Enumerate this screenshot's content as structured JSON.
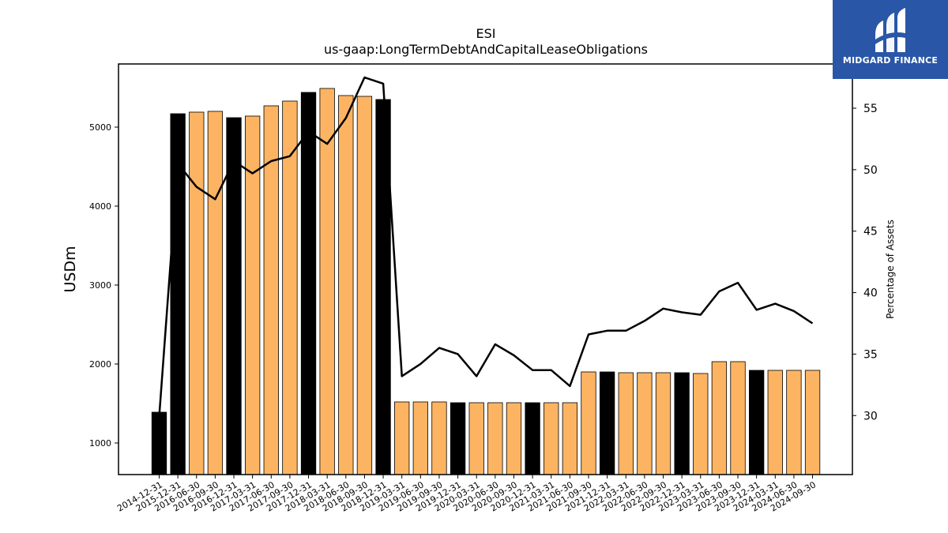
{
  "chart_data": {
    "type": "bar",
    "title": "ESI",
    "subtitle": "us-gaap:LongTermDebtAndCapitalLeaseObligations",
    "ylabel": "USDm",
    "y2label": "Percentage of Assets",
    "ylim": [
      600,
      5800
    ],
    "y2lim": [
      25.2,
      58.6
    ],
    "yticks": [
      1000,
      2000,
      3000,
      4000,
      5000
    ],
    "y2ticks": [
      30,
      35,
      40,
      45,
      50,
      55
    ],
    "categories": [
      "2014-12-31",
      "2015-12-31",
      "2016-06-30",
      "2016-09-30",
      "2016-12-31",
      "2017-03-31",
      "2017-06-30",
      "2017-09-30",
      "2017-12-31",
      "2018-03-31",
      "2018-06-30",
      "2018-09-30",
      "2018-12-31",
      "2019-03-31",
      "2019-06-30",
      "2019-09-30",
      "2019-12-31",
      "2020-03-31",
      "2020-06-30",
      "2020-09-30",
      "2020-12-31",
      "2021-03-31",
      "2021-06-30",
      "2021-09-30",
      "2021-12-31",
      "2022-03-31",
      "2022-06-30",
      "2022-09-30",
      "2022-12-31",
      "2023-03-31",
      "2023-06-30",
      "2023-09-30",
      "2023-12-31",
      "2024-03-31",
      "2024-06-30",
      "2024-09-30"
    ],
    "series": [
      {
        "kind": "bar",
        "values": [
          1390,
          5170,
          5190,
          5200,
          5120,
          5140,
          5270,
          5330,
          5440,
          5490,
          5400,
          5390,
          5350,
          1520,
          1520,
          1520,
          1510,
          1510,
          1510,
          1510,
          1510,
          1510,
          1510,
          1900,
          1900,
          1890,
          1890,
          1890,
          1890,
          1880,
          2030,
          2030,
          1920,
          1920,
          1920,
          1920
        ]
      },
      {
        "kind": "line",
        "axis": "right",
        "values": [
          29.9,
          50.5,
          48.6,
          47.6,
          50.7,
          49.7,
          50.7,
          51.1,
          53.1,
          52.1,
          54.2,
          57.5,
          57.0,
          33.2,
          34.2,
          35.5,
          35.0,
          33.2,
          35.8,
          34.9,
          33.7,
          33.7,
          32.4,
          36.6,
          36.9,
          36.9,
          37.7,
          38.7,
          38.4,
          38.2,
          40.1,
          40.8,
          38.6,
          39.1,
          38.5,
          37.5
        ]
      }
    ],
    "bar_fill_color": "#fdb462",
    "bar_highlight_color": "#000000",
    "highlight_categories": [
      "2014-12-31",
      "2015-12-31",
      "2016-12-31",
      "2017-12-31",
      "2018-12-31",
      "2019-12-31",
      "2020-12-31",
      "2021-12-31",
      "2022-12-31",
      "2023-12-31"
    ],
    "line_color": "#000000",
    "grid": false
  },
  "logo": {
    "text": "MIDGARD FINANCE",
    "color": "#2a56a8"
  }
}
